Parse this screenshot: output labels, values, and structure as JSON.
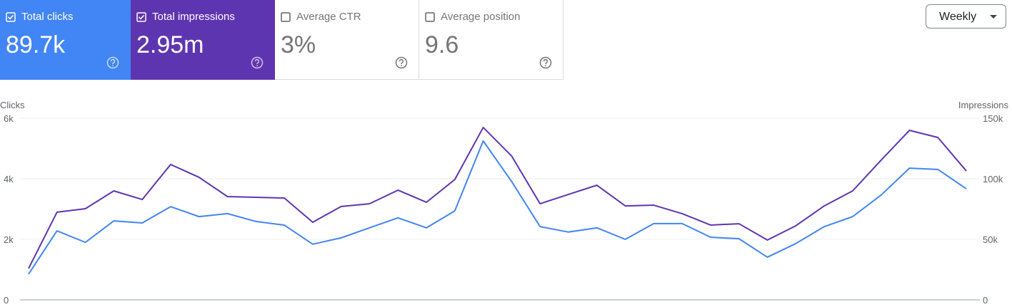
{
  "cards": [
    {
      "label": "Total clicks",
      "value": "89.7k",
      "checked": true
    },
    {
      "label": "Total impressions",
      "value": "2.95m",
      "checked": true
    },
    {
      "label": "Average CTR",
      "value": "3%",
      "checked": false
    },
    {
      "label": "Average position",
      "value": "9.6",
      "checked": false
    }
  ],
  "period": "Weekly",
  "chart_data": {
    "type": "line",
    "ylabel": "Clicks",
    "y2label": "Impressions",
    "categories": [
      null,
      null,
      null,
      null,
      null,
      null,
      null,
      null,
      null,
      null,
      null,
      null,
      null,
      null,
      null,
      null,
      null,
      null,
      null,
      null,
      null,
      null,
      null,
      null,
      null,
      null,
      null,
      null,
      null,
      null,
      null,
      null,
      null,
      null
    ],
    "series": [
      {
        "name": "Total clicks",
        "color": "#4285f4",
        "axis": "y",
        "values": [
          850,
          2280,
          1900,
          2610,
          2540,
          3080,
          2750,
          2850,
          2590,
          2470,
          1840,
          2050,
          2380,
          2710,
          2380,
          2940,
          5250,
          3910,
          2420,
          2240,
          2380,
          2000,
          2520,
          2520,
          2070,
          2020,
          1410,
          1860,
          2420,
          2750,
          3460,
          4350,
          4310,
          3670
        ]
      },
      {
        "name": "Total impressions",
        "color": "#5e35b1",
        "axis": "y2",
        "values": [
          25900,
          72400,
          75300,
          90000,
          82900,
          111800,
          101200,
          85300,
          84700,
          84100,
          64100,
          77100,
          79400,
          90600,
          80600,
          99400,
          142400,
          118800,
          79400,
          87100,
          94700,
          77600,
          78200,
          71200,
          61800,
          62900,
          49400,
          61200,
          77600,
          90000,
          115300,
          140000,
          134100,
          106500
        ]
      }
    ],
    "ylim": [
      0,
      6000
    ],
    "yticks": [
      0,
      {
        "value": 2000,
        "label": "2k"
      },
      {
        "value": 4000,
        "label": "4k"
      },
      {
        "value": 6000,
        "label": "6k"
      }
    ],
    "y2lim": [
      0,
      150000
    ],
    "y2ticks": [
      0,
      {
        "value": 50000,
        "label": "50k"
      },
      {
        "value": 100000,
        "label": "100k"
      },
      {
        "value": 150000,
        "label": "150k"
      }
    ],
    "grid": true
  }
}
